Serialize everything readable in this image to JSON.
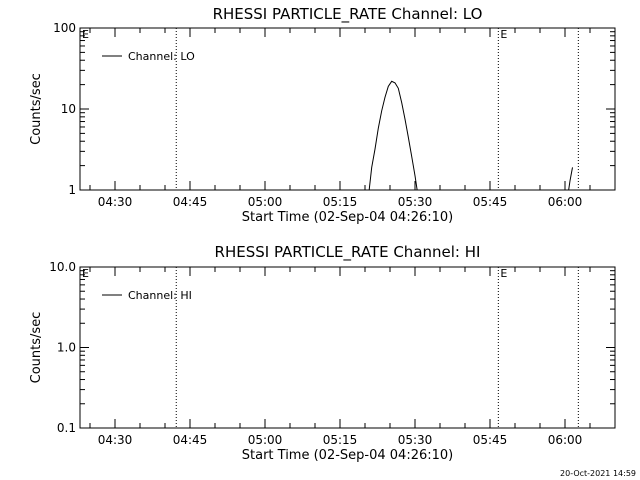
{
  "footer": {
    "timestamp": "20-Oct-2021 14:59"
  },
  "chart_data": [
    {
      "type": "line",
      "title": "RHESSI PARTICLE_RATE Channel: LO",
      "xlabel": "Start Time (02-Sep-04 04:26:10)",
      "ylabel": "Counts/sec",
      "yscale": "log",
      "xlim": [
        "04:23",
        "06:10"
      ],
      "ylim": [
        1,
        100
      ],
      "xticks": [
        "04:30",
        "04:45",
        "05:00",
        "05:15",
        "05:30",
        "05:45",
        "06:00"
      ],
      "yticks": [
        {
          "value": 1,
          "label": "1"
        },
        {
          "value": 10,
          "label": "10"
        },
        {
          "value": 100,
          "label": "100"
        }
      ],
      "legend": {
        "placement": "top-left",
        "entries": [
          "Channel: LO"
        ]
      },
      "vlines": [
        "04:42:15",
        "05:46:40",
        "06:02:40"
      ],
      "markers": [
        {
          "x": "04:23",
          "label": "E"
        },
        {
          "x": "05:46:40",
          "label": "E"
        }
      ],
      "series": [
        {
          "name": "Channel: LO",
          "points": [
            [
              "05:20:40",
              0.8
            ],
            [
              "05:21:20",
              1.9
            ],
            [
              "05:22:00",
              3.2
            ],
            [
              "05:22:40",
              5.8
            ],
            [
              "05:23:20",
              9.5
            ],
            [
              "05:24:00",
              14
            ],
            [
              "05:24:40",
              19
            ],
            [
              "05:25:20",
              22
            ],
            [
              "05:26:00",
              21
            ],
            [
              "05:26:40",
              18
            ],
            [
              "05:27:20",
              12
            ],
            [
              "05:28:00",
              7.5
            ],
            [
              "05:28:40",
              4.5
            ],
            [
              "05:29:20",
              2.6
            ],
            [
              "05:30:00",
              1.5
            ],
            [
              "05:30:40",
              0.8
            ],
            [
              "06:00:30",
              0.8
            ],
            [
              "06:01:00",
              1.3
            ],
            [
              "06:01:30",
              1.9
            ]
          ]
        }
      ]
    },
    {
      "type": "line",
      "title": "RHESSI PARTICLE_RATE Channel: HI",
      "xlabel": "Start Time (02-Sep-04 04:26:10)",
      "ylabel": "Counts/sec",
      "yscale": "log",
      "xlim": [
        "04:23",
        "06:10"
      ],
      "ylim": [
        0.1,
        10
      ],
      "xticks": [
        "04:30",
        "04:45",
        "05:00",
        "05:15",
        "05:30",
        "05:45",
        "06:00"
      ],
      "yticks": [
        {
          "value": 0.1,
          "label": "0.1"
        },
        {
          "value": 1,
          "label": "1.0"
        },
        {
          "value": 10,
          "label": "10.0"
        }
      ],
      "legend": {
        "placement": "top-left",
        "entries": [
          "Channel: HI"
        ]
      },
      "vlines": [
        "04:42:15",
        "05:46:40",
        "06:02:40"
      ],
      "markers": [
        {
          "x": "04:23",
          "label": "E"
        },
        {
          "x": "05:46:40",
          "label": "E"
        }
      ],
      "series": [
        {
          "name": "Channel: HI",
          "points": []
        }
      ]
    }
  ]
}
